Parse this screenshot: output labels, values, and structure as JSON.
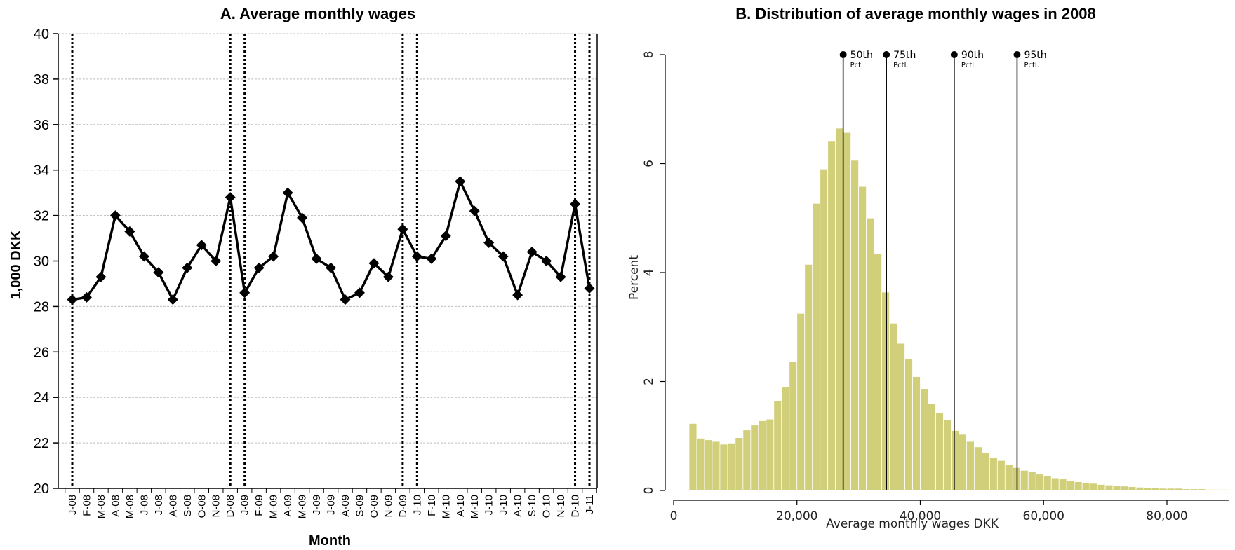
{
  "chart_data": [
    {
      "type": "line",
      "title": "A. Average monthly wages",
      "xlabel": "Month",
      "ylabel": "1,000 DKK",
      "ylim": [
        20,
        40
      ],
      "yticks": [
        20,
        22,
        24,
        26,
        28,
        30,
        32,
        34,
        36,
        38,
        40
      ],
      "grid": true,
      "categories": [
        "J-08",
        "F-08",
        "M-08",
        "A-08",
        "M-08",
        "J-08",
        "J-08",
        "A-08",
        "S-08",
        "O-08",
        "N-08",
        "D-08",
        "J-09",
        "F-09",
        "M-09",
        "A-09",
        "M-09",
        "J-09",
        "J-09",
        "A-09",
        "S-09",
        "O-09",
        "N-09",
        "D-09",
        "J-10",
        "F-10",
        "M-10",
        "A-10",
        "M-10",
        "J-10",
        "J-10",
        "A-10",
        "S-10",
        "O-10",
        "N-10",
        "D-10",
        "J-11"
      ],
      "series": [
        {
          "values": [
            28.3,
            28.4,
            29.3,
            32.0,
            31.3,
            30.2,
            29.5,
            28.3,
            29.7,
            30.7,
            30.0,
            32.8,
            28.6,
            29.7,
            30.2,
            33.0,
            31.9,
            30.1,
            29.7,
            28.3,
            28.6,
            29.9,
            29.3,
            31.4,
            30.2,
            30.1,
            31.1,
            33.5,
            32.2,
            30.8,
            30.2,
            28.5,
            30.4,
            30.0,
            29.3,
            32.5,
            28.8
          ]
        }
      ],
      "vertical_dotted_lines_at_categories": [
        "J-08",
        "D-08",
        "J-09",
        "D-09",
        "J-10",
        "D-10",
        "J-11"
      ]
    },
    {
      "type": "bar",
      "title": "B. Distribution of average monthly wages in 2008",
      "xlabel": "Average monthly wages DKK",
      "ylabel": "Percent",
      "xlim": [
        0,
        90000
      ],
      "ylim": [
        0,
        8
      ],
      "xticks": [
        0,
        20000,
        40000,
        60000,
        80000
      ],
      "xtick_labels": [
        "0",
        "20,000",
        "40,000",
        "60,000",
        "80,000"
      ],
      "yticks": [
        0,
        2,
        4,
        6,
        8
      ],
      "bin_start": 2500,
      "bin_width": 1250,
      "values": [
        1.23,
        0.96,
        0.93,
        0.9,
        0.85,
        0.87,
        0.97,
        1.11,
        1.2,
        1.28,
        1.31,
        1.65,
        1.9,
        2.37,
        3.25,
        4.15,
        5.27,
        5.9,
        6.42,
        6.65,
        6.57,
        6.06,
        5.58,
        5.0,
        4.35,
        3.64,
        3.07,
        2.7,
        2.41,
        2.09,
        1.87,
        1.6,
        1.43,
        1.3,
        1.1,
        1.03,
        0.9,
        0.8,
        0.7,
        0.6,
        0.55,
        0.48,
        0.42,
        0.37,
        0.34,
        0.3,
        0.27,
        0.23,
        0.21,
        0.18,
        0.16,
        0.14,
        0.13,
        0.11,
        0.1,
        0.09,
        0.08,
        0.07,
        0.06,
        0.05,
        0.05,
        0.04,
        0.04,
        0.04,
        0.03,
        0.03,
        0.03,
        0.02,
        0.02,
        0.02
      ],
      "bar_color": "#d1cf7a",
      "percentiles": [
        {
          "value": 27500,
          "label": "50th",
          "sub": "Pctl."
        },
        {
          "value": 34500,
          "label": "75th",
          "sub": "Pctl."
        },
        {
          "value": 45500,
          "label": "90th",
          "sub": "Pctl."
        },
        {
          "value": 55700,
          "label": "95th",
          "sub": "Pctl."
        }
      ]
    }
  ]
}
